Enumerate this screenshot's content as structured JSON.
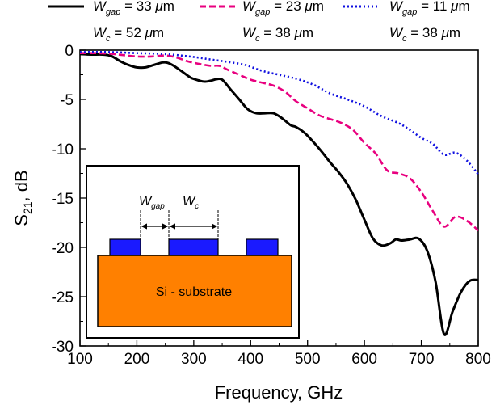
{
  "chart_data": {
    "type": "line",
    "title": "",
    "xlabel": "Frequency, GHz",
    "ylabel": {
      "main": "S",
      "sub": "21",
      "rest": ", dB"
    },
    "xlim": [
      100,
      800
    ],
    "ylim": [
      -30,
      0
    ],
    "xticks": [
      100,
      200,
      300,
      400,
      500,
      600,
      700,
      800
    ],
    "yticks": [
      0,
      -5,
      -10,
      -15,
      -20,
      -25,
      -30
    ],
    "grid": false,
    "legend_position": "top",
    "series": [
      {
        "id": "s1",
        "color": "#000000",
        "dash": "solid",
        "legend": {
          "w": "W",
          "w_sub": "gap",
          "w_rest": " = 33 ",
          "unit_mu": "μ",
          "unit_m": "m",
          "c": "W",
          "c_sub": "c",
          "c_rest": " = 52 ",
          "c_mu": "μ",
          "c_m": "m"
        },
        "x": [
          100,
          120,
          140,
          155,
          170,
          185,
          200,
          215,
          230,
          245,
          255,
          265,
          280,
          295,
          310,
          320,
          330,
          340,
          350,
          365,
          380,
          395,
          410,
          425,
          440,
          455,
          470,
          480,
          495,
          510,
          525,
          540,
          555,
          570,
          585,
          600,
          615,
          630,
          645,
          655,
          665,
          680,
          695,
          710,
          725,
          740,
          755,
          770,
          785,
          800
        ],
        "values": [
          -0.4,
          -0.45,
          -0.45,
          -0.6,
          -1.1,
          -1.5,
          -1.75,
          -1.75,
          -1.5,
          -1.25,
          -1.3,
          -1.6,
          -2.2,
          -2.8,
          -3.1,
          -3.2,
          -3.1,
          -2.95,
          -3.0,
          -4.0,
          -5.0,
          -6.0,
          -6.4,
          -6.4,
          -6.4,
          -6.9,
          -7.6,
          -7.8,
          -8.4,
          -9.3,
          -10.3,
          -11.4,
          -12.4,
          -13.6,
          -15.2,
          -17.2,
          -19.1,
          -19.8,
          -19.6,
          -19.2,
          -19.3,
          -19.2,
          -19.1,
          -20.3,
          -23.5,
          -28.8,
          -26.5,
          -24.5,
          -23.4,
          -23.3
        ]
      },
      {
        "id": "s2",
        "color": "#e8007f",
        "dash": "dash",
        "legend": {
          "w": "W",
          "w_sub": "gap",
          "w_rest": " = 23 ",
          "unit_mu": "μ",
          "unit_m": "m",
          "c": "W",
          "c_sub": "c",
          "c_rest": " = 38 ",
          "c_mu": "μ",
          "c_m": "m"
        },
        "x": [
          100,
          125,
          150,
          175,
          200,
          225,
          250,
          270,
          290,
          310,
          330,
          345,
          360,
          380,
          400,
          420,
          440,
          460,
          480,
          500,
          520,
          540,
          560,
          580,
          600,
          620,
          640,
          660,
          680,
          700,
          720,
          740,
          760,
          780,
          800
        ],
        "values": [
          -0.3,
          -0.3,
          -0.35,
          -0.5,
          -0.65,
          -0.65,
          -0.55,
          -0.75,
          -1.15,
          -1.4,
          -1.6,
          -1.6,
          -2.0,
          -2.5,
          -3.0,
          -3.3,
          -3.6,
          -4.2,
          -5.2,
          -5.9,
          -6.6,
          -7.0,
          -7.4,
          -8.1,
          -9.4,
          -10.5,
          -12.2,
          -12.5,
          -13.0,
          -14.4,
          -16.3,
          -17.9,
          -16.9,
          -17.3,
          -18.3
        ]
      },
      {
        "id": "s3",
        "color": "#1010e0",
        "dash": "dot",
        "legend": {
          "w": "W",
          "w_sub": "gap",
          "w_rest": " = 11 ",
          "unit_mu": "μ",
          "unit_m": "m",
          "c": "W",
          "c_sub": "c",
          "c_rest": " = 38 ",
          "c_mu": "μ",
          "c_m": "m"
        },
        "x": [
          100,
          150,
          200,
          250,
          300,
          330,
          360,
          390,
          420,
          450,
          480,
          510,
          540,
          570,
          600,
          630,
          660,
          680,
          700,
          720,
          740,
          760,
          780,
          800
        ],
        "values": [
          -0.2,
          -0.2,
          -0.3,
          -0.4,
          -0.7,
          -0.95,
          -1.2,
          -1.5,
          -2.1,
          -2.5,
          -2.9,
          -3.5,
          -4.4,
          -5.0,
          -5.7,
          -6.7,
          -7.4,
          -8.1,
          -8.9,
          -9.5,
          -10.6,
          -10.4,
          -11.2,
          -12.6
        ]
      }
    ],
    "inset": {
      "label_gap": {
        "w": "W",
        "sub": "gap"
      },
      "label_c": {
        "w": "W",
        "sub": "c"
      },
      "substrate_label": "Si - substrate",
      "substrate_color": "#ff8000",
      "strip_color": "#1a1aff"
    }
  }
}
